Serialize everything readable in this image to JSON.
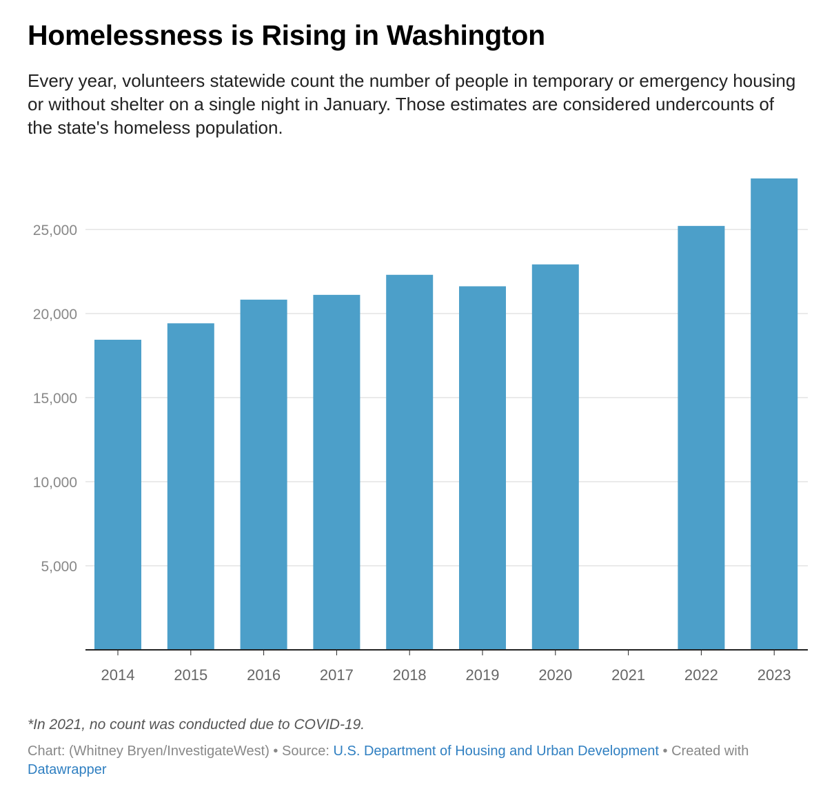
{
  "title": "Homelessness is Rising in Washington",
  "subtitle": "Every year, volunteers statewide count the number of people in temporary or emergency housing or without shelter on a single night in January. Those estimates are considered undercounts of the state's homeless population.",
  "note": "*In 2021, no count was conducted due to COVID-19.",
  "footer": {
    "chart_credit": "Chart: (Whitney Bryen/InvestigateWest)",
    "sep1": " • ",
    "source_label": "Source: ",
    "source_link": "U.S. Department of Housing and Urban Development",
    "sep2": " • ",
    "created_with": "Created with ",
    "tool_link": "Datawrapper"
  },
  "colors": {
    "bar": "#4c9fc9",
    "grid": "#e3e3e3",
    "axis": "#222222",
    "link": "#2f7fc1"
  },
  "chart_data": {
    "type": "bar",
    "title": "Homelessness is Rising in Washington",
    "xlabel": "",
    "ylabel": "",
    "categories": [
      "2014",
      "2015",
      "2016",
      "2017",
      "2018",
      "2019",
      "2020",
      "2021",
      "2022",
      "2023"
    ],
    "values": [
      18442,
      19419,
      20827,
      21112,
      22304,
      21621,
      22923,
      null,
      25211,
      28036
    ],
    "yticks": [
      5000,
      10000,
      15000,
      20000,
      25000
    ],
    "ytick_labels": [
      "5,000",
      "10,000",
      "15,000",
      "20,000",
      "25,000"
    ],
    "ylim": [
      0,
      28000
    ],
    "grid": true,
    "legend": "none"
  }
}
